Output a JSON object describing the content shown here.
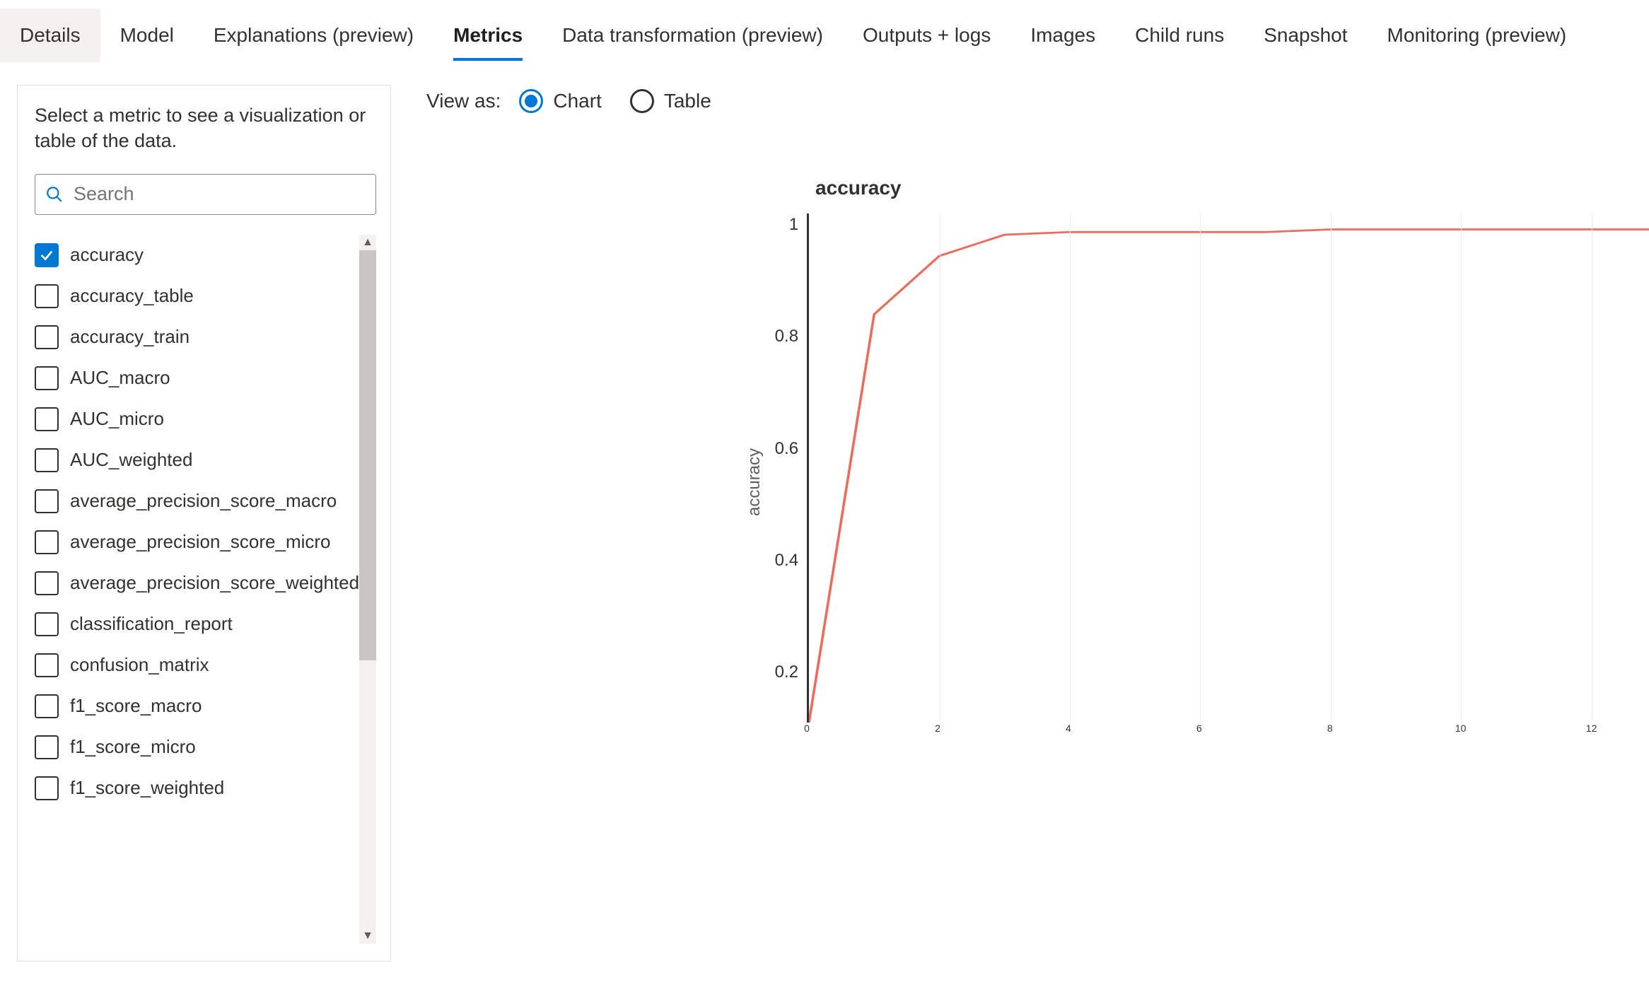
{
  "colors": {
    "accent": "#0078d4",
    "grid": "#ebebeb",
    "line": "#ed6b5b",
    "axis": "#323130",
    "text": "#323130",
    "background": "#ffffff"
  },
  "tabs": [
    {
      "label": "Details",
      "active": false,
      "selected_bg": true
    },
    {
      "label": "Model",
      "active": false
    },
    {
      "label": "Explanations (preview)",
      "active": false
    },
    {
      "label": "Metrics",
      "active": true
    },
    {
      "label": "Data transformation (preview)",
      "active": false
    },
    {
      "label": "Outputs + logs",
      "active": false
    },
    {
      "label": "Images",
      "active": false
    },
    {
      "label": "Child runs",
      "active": false
    },
    {
      "label": "Snapshot",
      "active": false
    },
    {
      "label": "Monitoring (preview)",
      "active": false
    }
  ],
  "sidebar": {
    "help_text": "Select a metric to see a visualization or table of the data.",
    "search_placeholder": "Search",
    "metrics": [
      {
        "label": "accuracy",
        "checked": true
      },
      {
        "label": "accuracy_table",
        "checked": false
      },
      {
        "label": "accuracy_train",
        "checked": false
      },
      {
        "label": "AUC_macro",
        "checked": false
      },
      {
        "label": "AUC_micro",
        "checked": false
      },
      {
        "label": "AUC_weighted",
        "checked": false
      },
      {
        "label": "average_precision_score_macro",
        "checked": false
      },
      {
        "label": "average_precision_score_micro",
        "checked": false
      },
      {
        "label": "average_precision_score_weighted",
        "checked": false
      },
      {
        "label": "classification_report",
        "checked": false
      },
      {
        "label": "confusion_matrix",
        "checked": false
      },
      {
        "label": "f1_score_macro",
        "checked": false
      },
      {
        "label": "f1_score_micro",
        "checked": false
      },
      {
        "label": "f1_score_weighted",
        "checked": false
      }
    ]
  },
  "view_as": {
    "label": "View as:",
    "options": [
      {
        "label": "Chart",
        "selected": true
      },
      {
        "label": "Table",
        "selected": false
      }
    ]
  },
  "chart": {
    "type": "line",
    "title": "accuracy",
    "ylabel": "accuracy",
    "x_values": [
      0,
      1,
      2,
      3,
      4,
      5,
      6,
      7,
      8,
      9,
      10,
      11,
      12,
      13
    ],
    "y_values": [
      0.06,
      0.83,
      0.94,
      0.98,
      0.985,
      0.985,
      0.985,
      0.985,
      0.99,
      0.99,
      0.99,
      0.99,
      0.99,
      0.99
    ],
    "line_color": "#ed6b5b",
    "line_width": 3,
    "xlim": [
      0,
      13
    ],
    "ylim": [
      0.06,
      1.02
    ],
    "y_ticks": [
      1,
      0.8,
      0.6,
      0.4,
      0.2
    ],
    "x_ticks": [
      0,
      2,
      4,
      6,
      8,
      10,
      12
    ],
    "grid_x": [
      2,
      4,
      6,
      8,
      10,
      12
    ],
    "grid_color": "#ebebeb",
    "background_color": "#ffffff",
    "tick_fontsize": 24,
    "label_fontsize": 24,
    "title_fontsize": 28
  }
}
